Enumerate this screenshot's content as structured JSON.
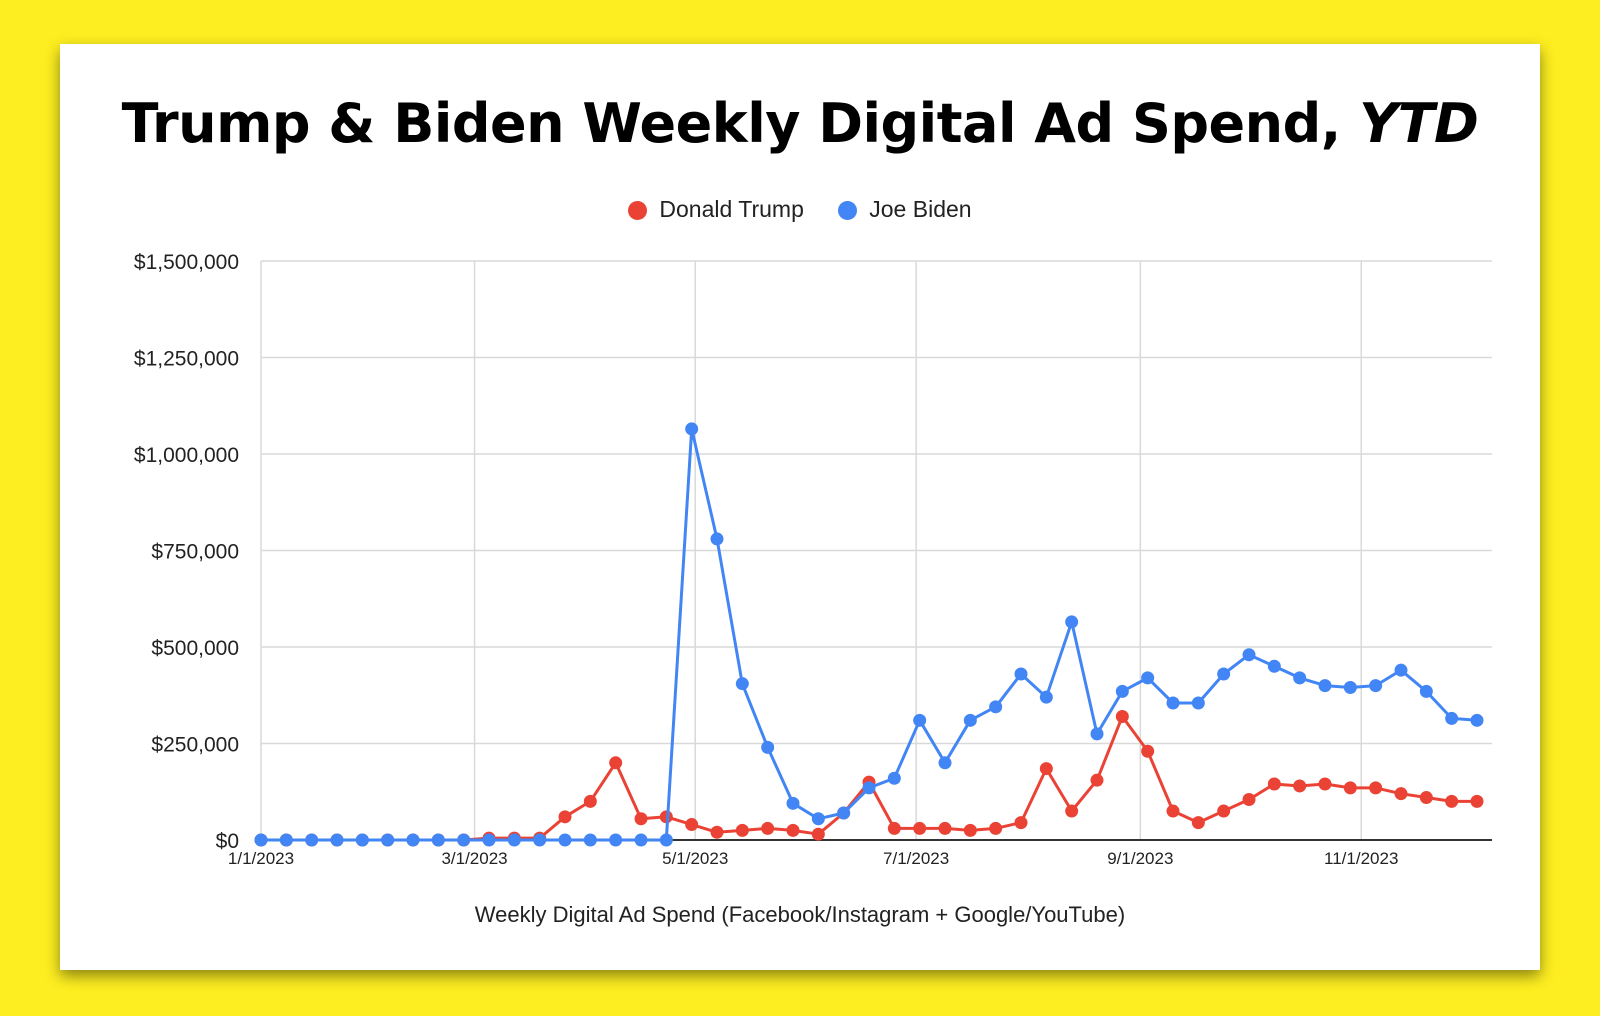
{
  "chart_data": {
    "type": "line",
    "title": "Trump & Biden Weekly Digital Ad Spend,",
    "title_emphasis": "YTD",
    "xlabel": "Weekly Digital Ad Spend (Facebook/Instagram + Google/YouTube)",
    "ylabel": "",
    "ylim": [
      0,
      1500000
    ],
    "y_ticks": [
      0,
      250000,
      500000,
      750000,
      1000000,
      1250000,
      1500000
    ],
    "y_tick_labels": [
      "$0",
      "$250,000",
      "$500,000",
      "$750,000",
      "$1,000,000",
      "$1,250,000",
      "$1,500,000"
    ],
    "x_ticks": [
      "1/1/2023",
      "3/1/2023",
      "5/1/2023",
      "7/1/2023",
      "9/1/2023",
      "11/1/2023"
    ],
    "x_tick_week_index": [
      0,
      8.43,
      17.14,
      25.86,
      34.71,
      43.43
    ],
    "num_weeks": 49,
    "grid": true,
    "legend_position": "top",
    "series": [
      {
        "name": "Donald Trump",
        "color": "#ea4335",
        "values": [
          0,
          0,
          0,
          0,
          0,
          0,
          0,
          0,
          0,
          5000,
          5000,
          5000,
          60000,
          100000,
          200000,
          55000,
          60000,
          40000,
          20000,
          25000,
          30000,
          25000,
          15000,
          70000,
          150000,
          30000,
          30000,
          30000,
          25000,
          30000,
          45000,
          185000,
          75000,
          155000,
          320000,
          230000,
          75000,
          45000,
          75000,
          105000,
          145000,
          140000,
          145000,
          135000,
          135000,
          120000,
          110000,
          100000,
          100000
        ]
      },
      {
        "name": "Joe Biden",
        "color": "#4285f4",
        "values": [
          0,
          0,
          0,
          0,
          0,
          0,
          0,
          0,
          0,
          0,
          0,
          0,
          0,
          0,
          0,
          0,
          0,
          1065000,
          780000,
          405000,
          240000,
          95000,
          55000,
          70000,
          135000,
          160000,
          310000,
          200000,
          310000,
          345000,
          430000,
          370000,
          565000,
          275000,
          385000,
          420000,
          355000,
          355000,
          430000,
          480000,
          450000,
          420000,
          400000,
          395000,
          400000,
          440000,
          385000,
          315000,
          310000
        ]
      }
    ]
  }
}
